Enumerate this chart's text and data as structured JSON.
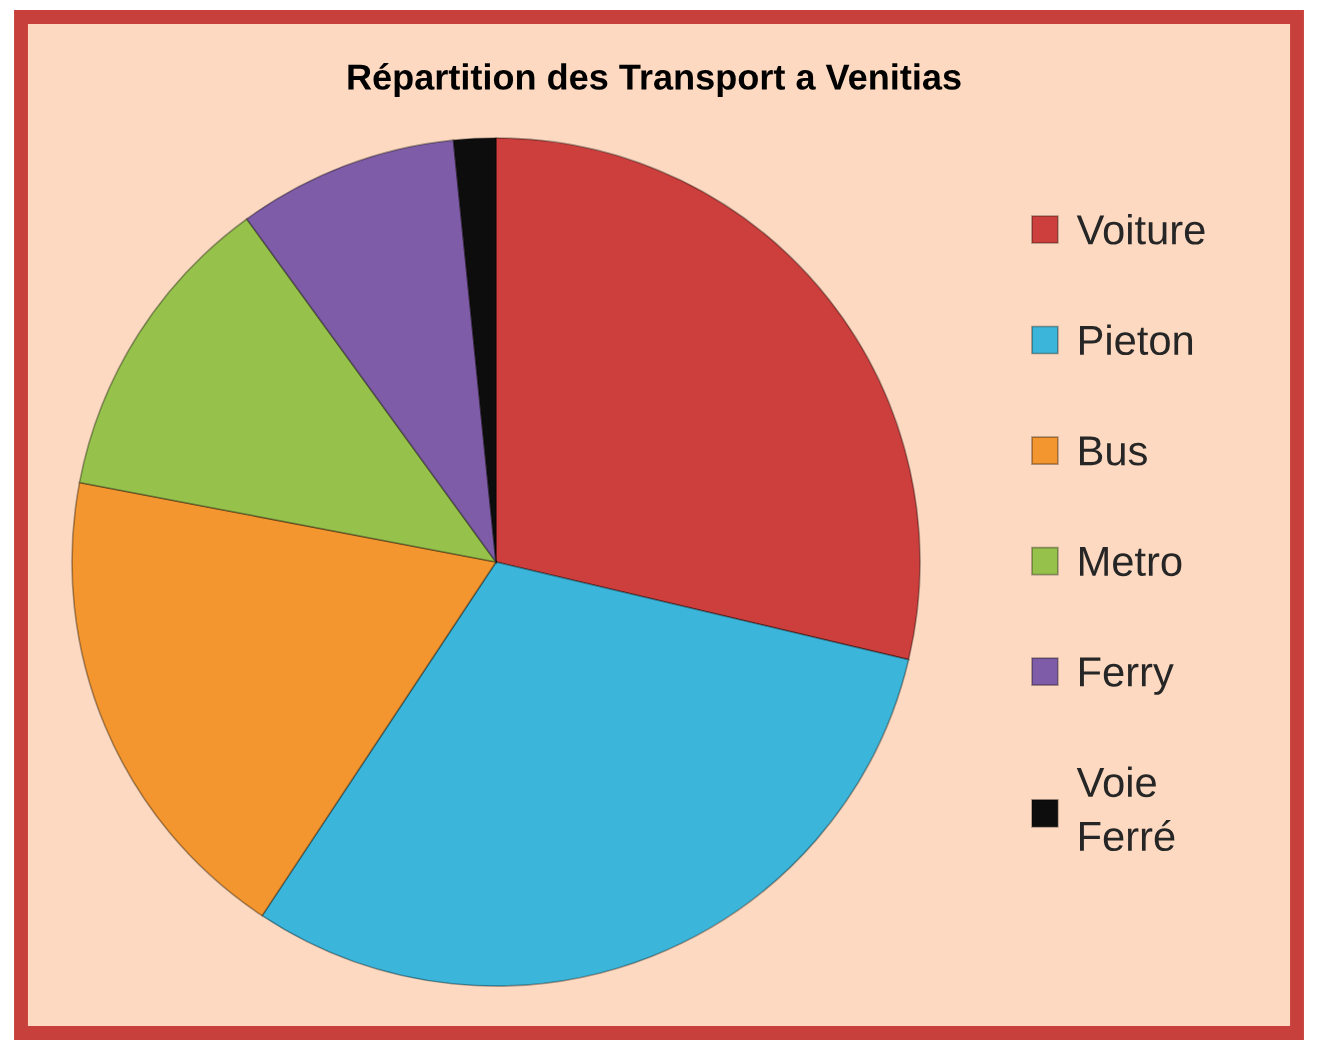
{
  "chart_data": {
    "type": "pie",
    "title": "Répartition des Transport a Venitias",
    "categories": [
      "Voiture",
      "Pieton",
      "Bus",
      "Metro",
      "Ferry",
      "Voie Ferré"
    ],
    "values": [
      28.7,
      30.6,
      18.7,
      12.0,
      8.4,
      1.6
    ],
    "colors": [
      "#cc3f3d",
      "#3bb5d9",
      "#f3962f",
      "#96c24c",
      "#7f5ca8",
      "#0d0d0d"
    ],
    "legend": "right"
  }
}
